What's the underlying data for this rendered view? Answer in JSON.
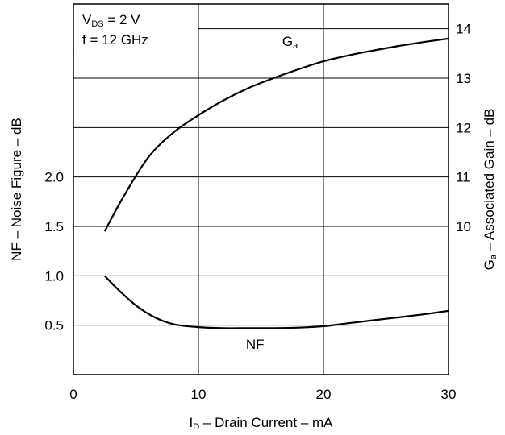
{
  "chart_data": {
    "type": "line",
    "x": {
      "label_main": "I",
      "label_sub": "D",
      "label_rest": " – Drain Current – mA",
      "range": [
        0,
        30
      ],
      "ticks": [
        0,
        10,
        20,
        30
      ],
      "tick_labels": [
        "0",
        "10",
        "20",
        "30"
      ]
    },
    "y_left": {
      "label": "NF – Noise Figure – dB",
      "range": [
        0,
        3.75
      ],
      "ticks": [
        0.5,
        1.0,
        1.5,
        2.0
      ],
      "tick_labels": [
        "0.5",
        "1.0",
        "1.5",
        "2.0"
      ]
    },
    "y_right": {
      "label_main": "G",
      "label_sub": "a",
      "label_rest": " – Associated Gain – dB",
      "range": [
        7,
        14.5
      ],
      "ticks": [
        10,
        11,
        12,
        13,
        14
      ],
      "tick_labels": [
        "10",
        "11",
        "12",
        "13",
        "14"
      ]
    },
    "conditions": [
      {
        "main": "V",
        "sub": "DS",
        "rest": " = 2 V"
      },
      {
        "main": "f = 12 GHz",
        "sub": "",
        "rest": ""
      }
    ],
    "series": [
      {
        "name_main": "G",
        "name_sub": "a",
        "axis": "right",
        "x": [
          2.5,
          4,
          6,
          8,
          10,
          12,
          14,
          16,
          18,
          20,
          22,
          24,
          26,
          28,
          30
        ],
        "y": [
          9.9,
          10.6,
          11.4,
          11.9,
          12.25,
          12.55,
          12.8,
          13.0,
          13.18,
          13.34,
          13.46,
          13.56,
          13.65,
          13.73,
          13.8
        ]
      },
      {
        "name_main": "NF",
        "name_sub": "",
        "axis": "left",
        "x": [
          2.5,
          3.5,
          5,
          6.5,
          8,
          10,
          12,
          14,
          16,
          18,
          20,
          22,
          24,
          26,
          28,
          30
        ],
        "y": [
          1.0,
          0.87,
          0.7,
          0.58,
          0.51,
          0.48,
          0.47,
          0.47,
          0.47,
          0.475,
          0.49,
          0.52,
          0.55,
          0.58,
          0.61,
          0.645
        ]
      }
    ],
    "grid": true,
    "legend": "none"
  }
}
